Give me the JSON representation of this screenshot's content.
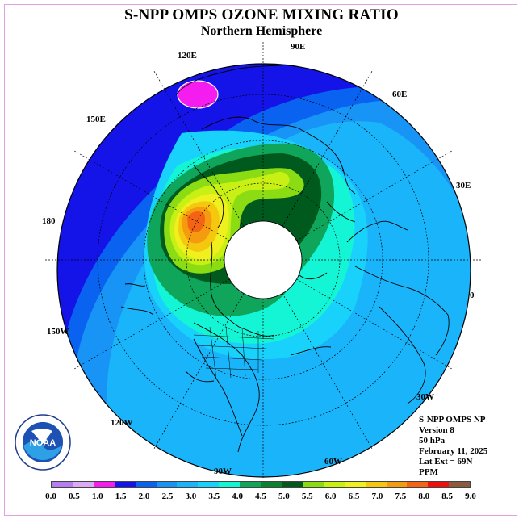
{
  "title": "S-NPP OMPS OZONE MIXING RATIO",
  "subtitle": "Northern Hemisphere",
  "longitude_labels": [
    "90E",
    "60E",
    "30E",
    "0",
    "30W",
    "60W",
    "90W",
    "120W",
    "150W",
    "180",
    "150E",
    "120E"
  ],
  "info": {
    "line1": "S-NPP OMPS NP",
    "line2": "Version 8",
    "line3": "50 hPa",
    "line4": "February 11, 2025",
    "line5": "Lat Ext = 69N",
    "line6": "PPM"
  },
  "logo": {
    "text": "NOAA",
    "ring_text": "NATIONAL OCEANIC AND ATMOSPHERIC ADMINISTRATION · U.S. DEPARTMENT OF COMMERCE"
  },
  "color_scale": {
    "ticks": [
      "0.0",
      "0.5",
      "1.0",
      "1.5",
      "2.0",
      "2.5",
      "3.0",
      "3.5",
      "4.0",
      "4.5",
      "5.0",
      "5.5",
      "6.0",
      "6.5",
      "7.0",
      "7.5",
      "8.0",
      "8.5",
      "9.0"
    ],
    "colors": [
      "#b57df0",
      "#dcaaf2",
      "#f51cf0",
      "#1414e8",
      "#0a62f0",
      "#1794f5",
      "#1ab4fa",
      "#19d2fc",
      "#14f5d6",
      "#0fa55a",
      "#0a8232",
      "#005a1e",
      "#8cdc14",
      "#c8f014",
      "#f0f01e",
      "#f5c80f",
      "#f59b0f",
      "#f56414",
      "#f00f0f",
      "#8c5a3c"
    ]
  },
  "regions": [
    {
      "name": "1.5-2.0 ppm",
      "color": "#1414e8"
    },
    {
      "name": "2.0-2.5 ppm",
      "color": "#0a62f0"
    },
    {
      "name": "2.5-3.0 ppm",
      "color": "#1794f5"
    },
    {
      "name": "3.0-3.5 ppm",
      "color": "#1ab4fa"
    },
    {
      "name": "3.5-4.0 ppm",
      "color": "#19d2fc"
    },
    {
      "name": "4.0-4.5 ppm",
      "color": "#14f5d6"
    },
    {
      "name": "4.5-5.0 ppm",
      "color": "#0fa55a"
    },
    {
      "name": "5.0-5.5 ppm",
      "color": "#005a1e"
    },
    {
      "name": "5.5-6.0 ppm",
      "color": "#8cdc14"
    },
    {
      "name": "6.0-6.5 ppm",
      "color": "#c8f014"
    },
    {
      "name": "6.5-7.0 ppm",
      "color": "#f0f01e"
    },
    {
      "name": "7.0-7.5 ppm",
      "color": "#f5c80f"
    },
    {
      "name": "7.5-8.0 ppm",
      "color": "#f59b0f"
    },
    {
      "name": "8.0-8.5 ppm",
      "color": "#f56414"
    },
    {
      "name": "1.0-1.5 ppm",
      "color": "#f51cf0"
    },
    {
      "name": "no data (polar night)",
      "color": "#ffffff"
    }
  ]
}
